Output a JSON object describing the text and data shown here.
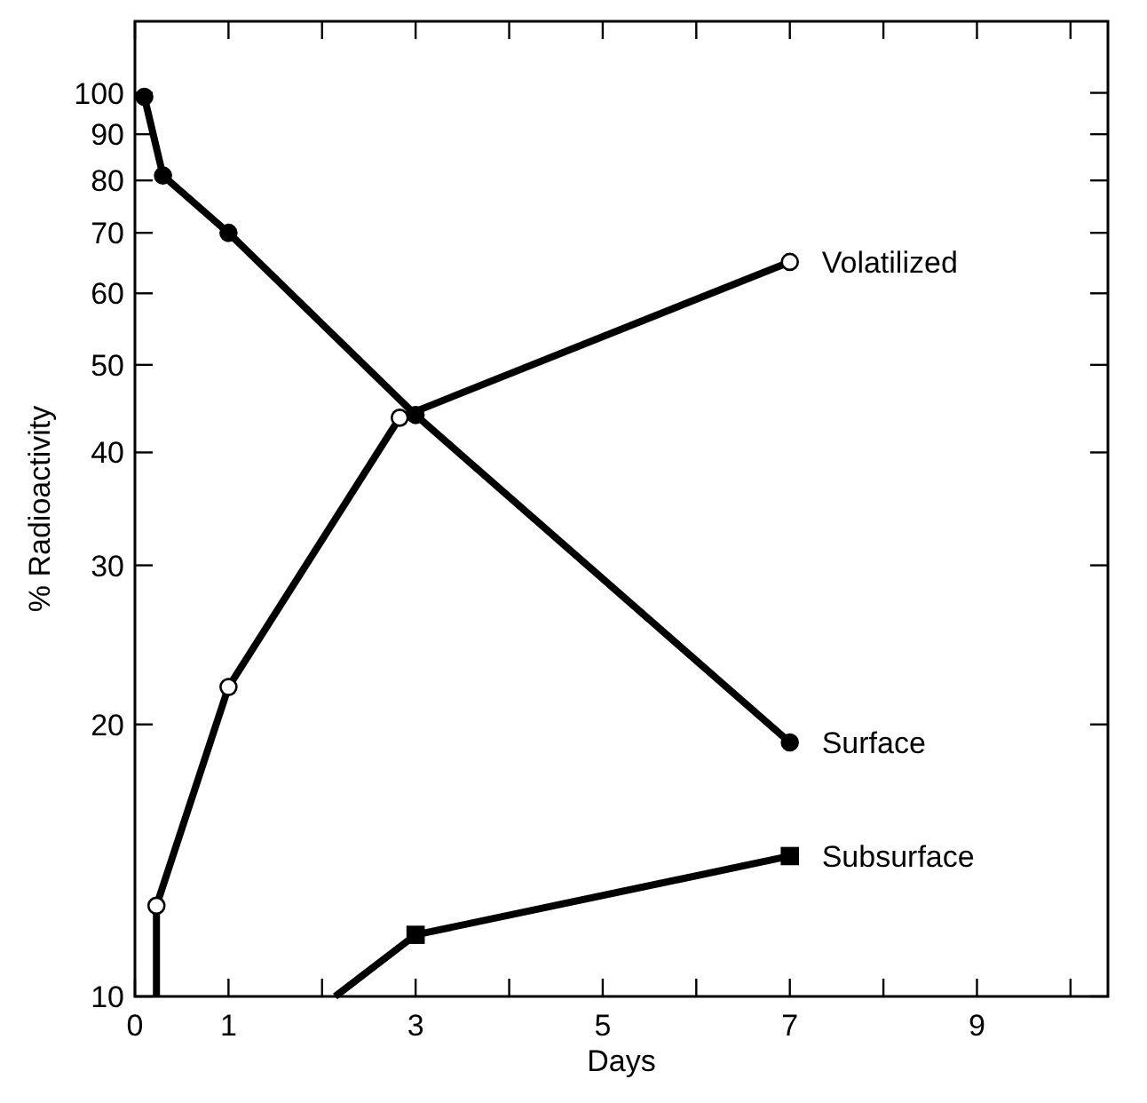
{
  "chart_data": {
    "type": "line",
    "xlabel": "Days",
    "ylabel": "% Radioactivity",
    "log": "y",
    "grid": false,
    "line_style": "solid",
    "xlim": [
      0,
      10.4
    ],
    "xticks": [
      0,
      1,
      {
        "value": 2,
        "label": null
      },
      3,
      {
        "value": 4,
        "label": null
      },
      5,
      {
        "value": 6,
        "label": null
      },
      7,
      {
        "value": 8,
        "label": null
      },
      9,
      {
        "value": 10,
        "label": null
      }
    ],
    "ylim": [
      10,
      120
    ],
    "yticks": [
      10,
      20,
      30,
      40,
      50,
      60,
      70,
      80,
      90,
      100
    ],
    "series": [
      {
        "name": "Volatilized",
        "color": "#000000",
        "marker": "circle",
        "colors": [
          null,
          "#ffffff",
          "#ffffff",
          "#ffffff",
          "#ffffff"
        ],
        "x": [
          0.23,
          0.23,
          1,
          2.83,
          7
        ],
        "values": [
          10,
          12.6,
          22,
          43.7,
          65
        ]
      },
      {
        "name": "Surface",
        "color": "#000000",
        "marker": "circle",
        "x": [
          0.1,
          0.3,
          1,
          3,
          7
        ],
        "values": [
          99,
          81,
          70,
          44,
          19.1
        ]
      },
      {
        "name": "Subsurface",
        "color": "#000000",
        "marker": "square",
        "colors": [
          null,
          "#000000",
          "#000000"
        ],
        "x": [
          2.14,
          3,
          7
        ],
        "values": [
          10,
          11.7,
          14.3
        ]
      }
    ]
  }
}
